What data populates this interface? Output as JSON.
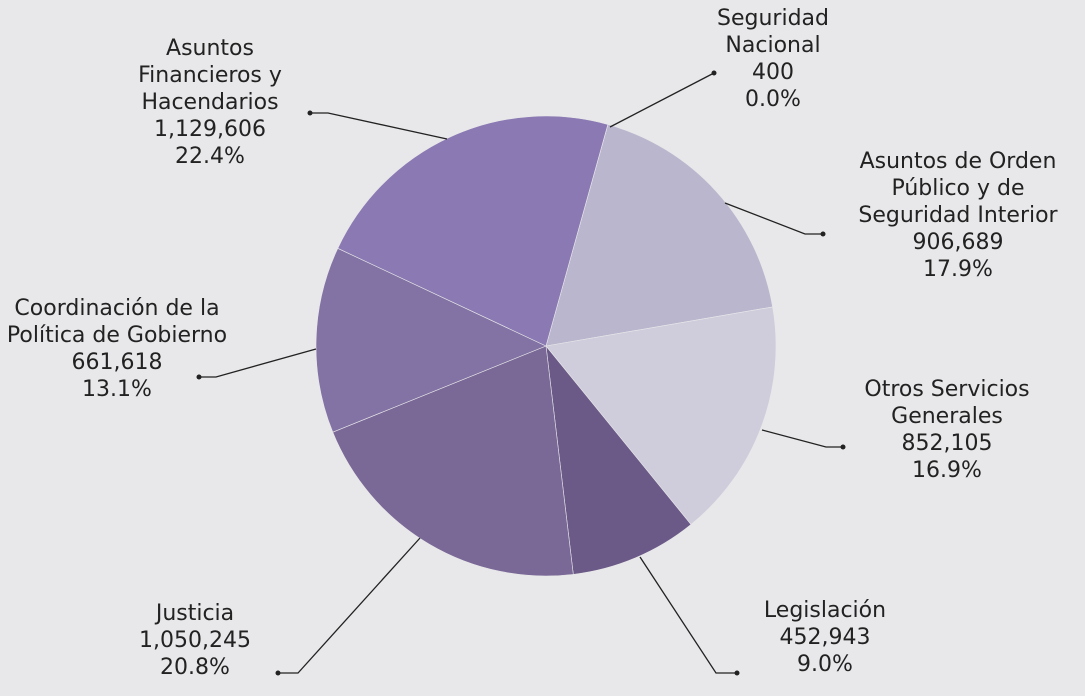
{
  "chart_data": {
    "type": "pie",
    "categories": [
      "Seguridad Nacional",
      "Asuntos de Orden Público y de Seguridad Interior",
      "Otros Servicios Generales",
      "Legislación",
      "Justicia",
      "Coordinación de la Política de Gobierno",
      "Asuntos Financieros y Hacendarios"
    ],
    "values": [
      400,
      906689,
      852105,
      452943,
      1050245,
      661618,
      1129606
    ],
    "value_labels": [
      "400",
      "906,689",
      "852,105",
      "452,943",
      "1,050,245",
      "661,618",
      "1,129,606"
    ],
    "percent_labels": [
      "0.0%",
      "17.9%",
      "16.9%",
      "9.0%",
      "20.8%",
      "13.1%",
      "22.4%"
    ],
    "colors": [
      "#a9a3bf",
      "#bab6cd",
      "#cfcddb",
      "#6b5a87",
      "#7a6897",
      "#8373a4",
      "#8b79b3"
    ]
  }
}
